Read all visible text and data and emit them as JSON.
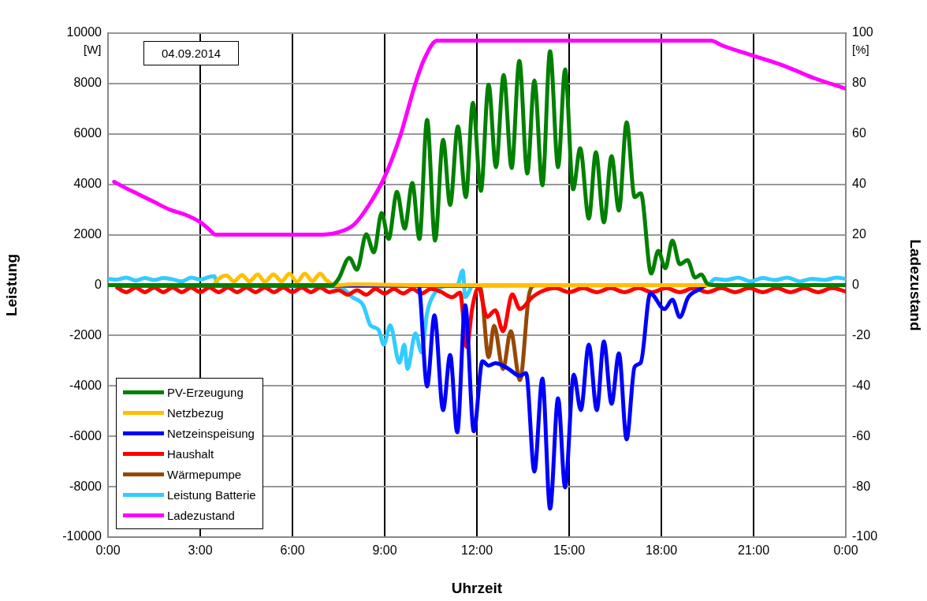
{
  "chart_data": {
    "type": "line",
    "xlabel": "Uhrzeit",
    "ylabel": "Leistung",
    "y2label": "Ladezustand",
    "annotations": [
      "04.09.2014",
      "[W]",
      "[%]"
    ],
    "xlim": [
      0,
      24
    ],
    "xticks": [
      {
        "value": 0,
        "label": "0:00"
      },
      {
        "value": 3,
        "label": "3:00"
      },
      {
        "value": 6,
        "label": "6:00"
      },
      {
        "value": 9,
        "label": "9:00"
      },
      {
        "value": 12,
        "label": "12:00"
      },
      {
        "value": 15,
        "label": "15:00"
      },
      {
        "value": 18,
        "label": "18:00"
      },
      {
        "value": 21,
        "label": "21:00"
      },
      {
        "value": 24,
        "label": "0:00"
      }
    ],
    "ylim": [
      -10000,
      10000
    ],
    "yticks": [
      -10000,
      -8000,
      -6000,
      -4000,
      -2000,
      0,
      2000,
      4000,
      6000,
      8000,
      10000
    ],
    "y2lim": [
      -100,
      100
    ],
    "y2ticks": [
      -100,
      -80,
      -60,
      -40,
      -20,
      0,
      20,
      40,
      60,
      80,
      100
    ],
    "grid": true,
    "legend": "bottom left",
    "marker": "none",
    "line_style": "solid",
    "series": [
      {
        "name": "PV-Erzeugung",
        "color": "#008000",
        "x": [
          0,
          7.3,
          7.5,
          7.85,
          8.1,
          8.4,
          8.65,
          8.9,
          9.13,
          9.4,
          9.65,
          9.9,
          10.13,
          10.38,
          10.64,
          10.9,
          11.13,
          11.38,
          11.64,
          11.87,
          12.13,
          12.38,
          12.62,
          12.87,
          13.13,
          13.38,
          13.64,
          13.87,
          14.13,
          14.38,
          14.64,
          14.87,
          15.13,
          15.36,
          15.64,
          15.87,
          16.13,
          16.38,
          16.62,
          16.87,
          17.13,
          17.33,
          17.67,
          17.9,
          18.13,
          18.36,
          18.6,
          18.85,
          19.1,
          19.3,
          19.5,
          19.7,
          24
        ],
        "values": [
          0,
          0,
          250,
          1080,
          610,
          2020,
          1300,
          2860,
          1830,
          3700,
          2240,
          4050,
          1830,
          6560,
          1770,
          5770,
          3180,
          6300,
          3490,
          7240,
          3740,
          7960,
          4680,
          8340,
          4650,
          8900,
          4430,
          8120,
          3960,
          9280,
          4680,
          8560,
          3800,
          5430,
          2640,
          5270,
          2490,
          5120,
          2960,
          6460,
          3490,
          3650,
          460,
          1360,
          670,
          1770,
          830,
          990,
          300,
          420,
          50,
          0,
          0
        ]
      },
      {
        "name": "Netzbezug",
        "color": "#ffc000",
        "x": [
          0,
          3.4,
          3.6,
          3.85,
          4.1,
          4.36,
          4.6,
          4.87,
          5.1,
          5.38,
          5.65,
          5.9,
          6.15,
          6.4,
          6.65,
          6.9,
          7.1,
          7.4,
          8,
          10,
          24
        ],
        "values": [
          0,
          0,
          250,
          380,
          150,
          400,
          150,
          420,
          140,
          420,
          150,
          450,
          130,
          450,
          160,
          450,
          200,
          0,
          30,
          0,
          0
        ]
      },
      {
        "name": "Netzeinspeisung",
        "color": "#0000ff",
        "x": [
          0,
          10.1,
          10.38,
          10.62,
          10.9,
          11.13,
          11.36,
          11.62,
          11.9,
          12.18,
          12.38,
          12.6,
          13.0,
          13.4,
          13.6,
          13.87,
          14.13,
          14.38,
          14.64,
          14.87,
          15.15,
          15.38,
          15.64,
          15.9,
          16.13,
          16.38,
          16.62,
          16.87,
          17.13,
          17.33,
          17.64,
          18.1,
          18.36,
          18.6,
          18.87,
          19.23,
          19.5,
          24
        ],
        "values": [
          0,
          0,
          -4020,
          -1200,
          -4960,
          -2770,
          -5840,
          -800,
          -5800,
          -3020,
          -3190,
          -3100,
          -3300,
          -3600,
          -3490,
          -7400,
          -3710,
          -8870,
          -4490,
          -8030,
          -3550,
          -4960,
          -2360,
          -4960,
          -2240,
          -4710,
          -2710,
          -6120,
          -3240,
          -3080,
          -330,
          -950,
          -580,
          -1270,
          -490,
          -170,
          0,
          0
        ]
      },
      {
        "name": "Haushalt",
        "color": "#ff0000",
        "x": [
          0.3,
          0.6,
          0.9,
          1.2,
          1.5,
          1.8,
          2.1,
          2.4,
          2.7,
          3.0,
          3.3,
          3.6,
          3.9,
          4.2,
          4.5,
          4.8,
          5.1,
          5.4,
          5.7,
          6.0,
          6.3,
          6.6,
          6.9,
          7.2,
          7.5,
          7.8,
          8.1,
          8.4,
          8.7,
          9.0,
          9.3,
          9.6,
          9.9,
          10.2,
          10.5,
          10.8,
          11.2,
          11.45,
          11.67,
          11.85,
          12.05,
          12.33,
          12.6,
          12.85,
          13.15,
          13.4,
          13.8,
          14.1,
          14.55,
          15,
          15.45,
          15.9,
          16.35,
          16.8,
          17.25,
          17.7,
          18.15,
          18.6,
          19.05,
          19.5,
          19.95,
          20.4,
          20.85,
          21.3,
          21.75,
          22.2,
          22.65,
          23.1,
          23.55,
          24
        ],
        "values": [
          -100,
          -280,
          -100,
          -280,
          -100,
          -280,
          -100,
          -280,
          -100,
          -280,
          -100,
          -280,
          -100,
          -280,
          -100,
          -280,
          -100,
          -280,
          -100,
          -280,
          -100,
          -280,
          -100,
          -280,
          -200,
          -380,
          -200,
          -380,
          -150,
          -330,
          -150,
          -330,
          -150,
          -330,
          -150,
          -250,
          -480,
          -300,
          -2460,
          -900,
          -100,
          -1260,
          -1000,
          -1830,
          -370,
          -950,
          -480,
          -250,
          -120,
          -280,
          -120,
          -280,
          -120,
          -280,
          -120,
          -280,
          -120,
          -280,
          -120,
          -280,
          -120,
          -280,
          -120,
          -280,
          -120,
          -280,
          -120,
          -280,
          -120,
          -250
        ]
      },
      {
        "name": "Wärmepumpe",
        "color": "#974806",
        "x": [
          0.3,
          12.0,
          12.13,
          12.38,
          12.56,
          12.85,
          13.1,
          13.4,
          13.7,
          13.9,
          24
        ],
        "values": [
          -30,
          -30,
          -160,
          -2860,
          -1610,
          -3330,
          -1830,
          -3770,
          -360,
          0,
          0
        ]
      },
      {
        "name": "Leistung Batterie",
        "color": "#33ccff",
        "x": [
          0,
          0.3,
          0.6,
          0.9,
          1.2,
          1.5,
          1.8,
          2.1,
          2.4,
          2.7,
          3.0,
          3.3,
          3.45,
          3.6,
          7.5,
          7.95,
          8.3,
          8.54,
          8.8,
          8.97,
          9.18,
          9.48,
          9.64,
          9.74,
          10.0,
          10.2,
          10.38,
          10.6,
          11.03,
          11.36,
          11.54,
          11.62,
          11.87,
          19.5,
          19.75,
          20.1,
          20.5,
          20.9,
          21.3,
          21.7,
          22.1,
          22.5,
          22.9,
          23.3,
          23.7,
          24
        ],
        "values": [
          250,
          220,
          300,
          180,
          280,
          200,
          280,
          230,
          150,
          300,
          220,
          330,
          350,
          -30,
          -50,
          -480,
          -800,
          -1600,
          -1770,
          -2360,
          -1600,
          -3080,
          -2360,
          -3330,
          -1920,
          -2670,
          -1100,
          -370,
          -30,
          0,
          580,
          -480,
          -20,
          0,
          250,
          200,
          300,
          150,
          280,
          200,
          300,
          150,
          250,
          200,
          300,
          250
        ]
      },
      {
        "name": "Ladezustand",
        "color": "#ff00ff",
        "axis": "y2",
        "x": [
          0.2,
          0.5,
          1,
          1.5,
          2,
          2.5,
          3,
          3.3,
          3.5,
          5,
          6,
          7,
          7.5,
          8,
          8.5,
          9,
          9.5,
          10,
          10.3,
          10.7,
          19.6,
          20,
          21,
          22,
          23,
          24
        ],
        "values": [
          41,
          39,
          36,
          33,
          30,
          28,
          25,
          22,
          20,
          20,
          20,
          20,
          21,
          24,
          32,
          43,
          59,
          80,
          90,
          97,
          97,
          95,
          91,
          87,
          82,
          78
        ]
      }
    ]
  }
}
